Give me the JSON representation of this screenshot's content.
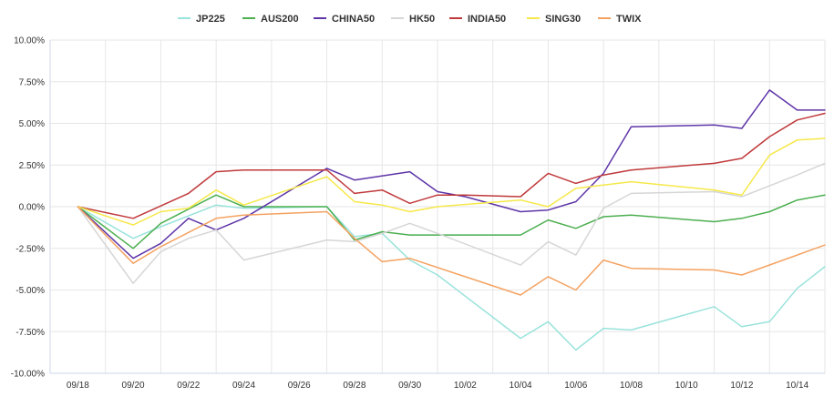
{
  "chart_data": {
    "type": "line",
    "title": "",
    "xlabel": "",
    "ylabel": "",
    "ylim": [
      -10,
      10
    ],
    "y_ticks": [
      10,
      7.5,
      5,
      2.5,
      0,
      -2.5,
      -5,
      -7.5,
      -10
    ],
    "y_tick_labels": [
      "10.00%",
      "7.50%",
      "5.00%",
      "2.50%",
      "0.00%",
      "-2.50%",
      "-5.00%",
      "-7.50%",
      "-10.00%"
    ],
    "x_ticks": [
      "09/18",
      "09/20",
      "09/22",
      "09/24",
      "09/26",
      "09/28",
      "09/30",
      "10/02",
      "10/04",
      "10/06",
      "10/08",
      "10/10",
      "10/12",
      "10/14"
    ],
    "x_range": [
      "09/17",
      "10/15"
    ],
    "legend_position": "top-center",
    "grid": true,
    "series": [
      {
        "name": "JP225",
        "color": "#9ae3dc",
        "points": [
          [
            "09/18",
            0
          ],
          [
            "09/20",
            -1.9
          ],
          [
            "09/21",
            -1.2
          ],
          [
            "09/23",
            0.1
          ],
          [
            "09/24",
            -0.1
          ],
          [
            "09/27",
            0.0
          ],
          [
            "09/28",
            -1.8
          ],
          [
            "09/29",
            -1.6
          ],
          [
            "09/30",
            -3.2
          ],
          [
            "10/01",
            -4.1
          ],
          [
            "10/04",
            -7.9
          ],
          [
            "10/05",
            -6.9
          ],
          [
            "10/06",
            -8.6
          ],
          [
            "10/07",
            -7.3
          ],
          [
            "10/08",
            -7.4
          ],
          [
            "10/11",
            -6.0
          ],
          [
            "10/12",
            -7.2
          ],
          [
            "10/13",
            -6.9
          ],
          [
            "10/14",
            -4.9
          ],
          [
            "10/15",
            -3.6
          ]
        ]
      },
      {
        "name": "AUS200",
        "color": "#4caf50",
        "points": [
          [
            "09/18",
            0
          ],
          [
            "09/20",
            -2.5
          ],
          [
            "09/21",
            -1.0
          ],
          [
            "09/23",
            0.7
          ],
          [
            "09/24",
            0.0
          ],
          [
            "09/27",
            0.0
          ],
          [
            "09/28",
            -2.0
          ],
          [
            "09/29",
            -1.5
          ],
          [
            "09/30",
            -1.7
          ],
          [
            "10/01",
            -1.7
          ],
          [
            "10/04",
            -1.7
          ],
          [
            "10/05",
            -0.8
          ],
          [
            "10/06",
            -1.3
          ],
          [
            "10/07",
            -0.6
          ],
          [
            "10/08",
            -0.5
          ],
          [
            "10/11",
            -0.9
          ],
          [
            "10/12",
            -0.7
          ],
          [
            "10/13",
            -0.3
          ],
          [
            "10/14",
            0.4
          ],
          [
            "10/15",
            0.7
          ]
        ]
      },
      {
        "name": "CHINA50",
        "color": "#5e35a8",
        "points": [
          [
            "09/18",
            0
          ],
          [
            "09/20",
            -3.1
          ],
          [
            "09/21",
            -2.2
          ],
          [
            "09/22",
            -0.7
          ],
          [
            "09/23",
            -1.4
          ],
          [
            "09/24",
            -0.7
          ],
          [
            "09/27",
            2.3
          ],
          [
            "09/28",
            1.6
          ],
          [
            "09/30",
            2.1
          ],
          [
            "10/01",
            0.9
          ],
          [
            "10/02",
            0.6
          ],
          [
            "10/04",
            -0.3
          ],
          [
            "10/05",
            -0.2
          ],
          [
            "10/06",
            0.3
          ],
          [
            "10/07",
            2.0
          ],
          [
            "10/08",
            4.8
          ],
          [
            "10/11",
            4.9
          ],
          [
            "10/12",
            4.7
          ],
          [
            "10/13",
            7.0
          ],
          [
            "10/14",
            5.8
          ],
          [
            "10/15",
            5.8
          ]
        ]
      },
      {
        "name": "HK50",
        "color": "#d6d6d6",
        "points": [
          [
            "09/18",
            0
          ],
          [
            "09/20",
            -4.6
          ],
          [
            "09/21",
            -2.7
          ],
          [
            "09/22",
            -1.9
          ],
          [
            "09/23",
            -1.4
          ],
          [
            "09/24",
            -3.2
          ],
          [
            "09/27",
            -2.0
          ],
          [
            "09/28",
            -2.1
          ],
          [
            "09/29",
            -1.6
          ],
          [
            "09/30",
            -1.0
          ],
          [
            "10/01",
            -1.6
          ],
          [
            "10/04",
            -3.5
          ],
          [
            "10/05",
            -2.1
          ],
          [
            "10/06",
            -2.9
          ],
          [
            "10/07",
            -0.1
          ],
          [
            "10/08",
            0.8
          ],
          [
            "10/11",
            0.9
          ],
          [
            "10/12",
            0.6
          ],
          [
            "10/14",
            1.9
          ],
          [
            "10/15",
            2.6
          ]
        ]
      },
      {
        "name": "INDIA50",
        "color": "#c0393b",
        "points": [
          [
            "09/18",
            0
          ],
          [
            "09/20",
            -0.7
          ],
          [
            "09/22",
            0.8
          ],
          [
            "09/23",
            2.1
          ],
          [
            "09/24",
            2.2
          ],
          [
            "09/27",
            2.2
          ],
          [
            "09/28",
            0.8
          ],
          [
            "09/29",
            1.0
          ],
          [
            "09/30",
            0.2
          ],
          [
            "10/01",
            0.7
          ],
          [
            "10/02",
            0.7
          ],
          [
            "10/04",
            0.6
          ],
          [
            "10/05",
            2.0
          ],
          [
            "10/06",
            1.4
          ],
          [
            "10/07",
            1.9
          ],
          [
            "10/08",
            2.2
          ],
          [
            "10/11",
            2.6
          ],
          [
            "10/12",
            2.9
          ],
          [
            "10/13",
            4.2
          ],
          [
            "10/14",
            5.2
          ],
          [
            "10/15",
            5.6
          ]
        ]
      },
      {
        "name": "SING30",
        "color": "#f6e84a",
        "points": [
          [
            "09/18",
            0
          ],
          [
            "09/20",
            -1.1
          ],
          [
            "09/21",
            -0.3
          ],
          [
            "09/22",
            -0.1
          ],
          [
            "09/23",
            1.0
          ],
          [
            "09/24",
            0.1
          ],
          [
            "09/27",
            1.8
          ],
          [
            "09/28",
            0.3
          ],
          [
            "09/29",
            0.1
          ],
          [
            "09/30",
            -0.3
          ],
          [
            "10/01",
            0.0
          ],
          [
            "10/04",
            0.4
          ],
          [
            "10/05",
            0.0
          ],
          [
            "10/06",
            1.1
          ],
          [
            "10/07",
            1.3
          ],
          [
            "10/08",
            1.5
          ],
          [
            "10/11",
            1.0
          ],
          [
            "10/12",
            0.7
          ],
          [
            "10/13",
            3.1
          ],
          [
            "10/14",
            4.0
          ],
          [
            "10/15",
            4.1
          ]
        ]
      },
      {
        "name": "TWIX",
        "color": "#f4a261",
        "points": [
          [
            "09/18",
            0
          ],
          [
            "09/20",
            -3.4
          ],
          [
            "09/21",
            -2.4
          ],
          [
            "09/23",
            -0.7
          ],
          [
            "09/24",
            -0.5
          ],
          [
            "09/27",
            -0.3
          ],
          [
            "09/28",
            -1.9
          ],
          [
            "09/29",
            -3.3
          ],
          [
            "09/30",
            -3.1
          ],
          [
            "10/04",
            -5.3
          ],
          [
            "10/05",
            -4.2
          ],
          [
            "10/06",
            -5.0
          ],
          [
            "10/07",
            -3.2
          ],
          [
            "10/08",
            -3.7
          ],
          [
            "10/11",
            -3.8
          ],
          [
            "10/12",
            -4.1
          ],
          [
            "10/15",
            -2.3
          ]
        ]
      }
    ]
  }
}
